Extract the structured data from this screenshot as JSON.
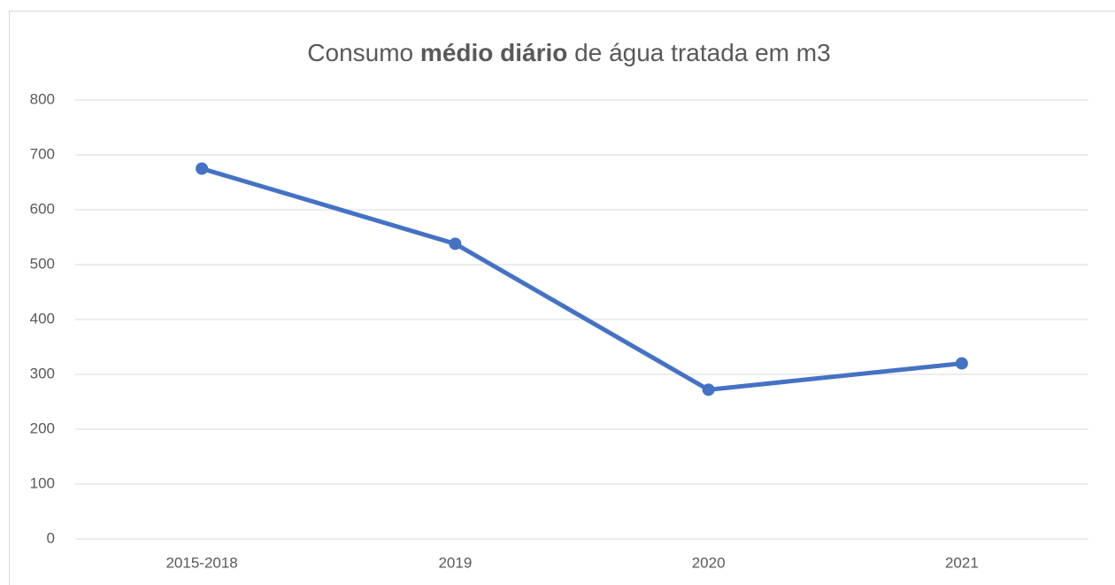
{
  "chart_data": {
    "type": "line",
    "title": [
      {
        "text": "Consumo "
      },
      {
        "text": "médio diário",
        "bold": true
      },
      {
        "text": " de água tratada em m3"
      }
    ],
    "categories": [
      "2015-2018",
      "2019",
      "2020",
      "2021"
    ],
    "series": [
      {
        "color": "#4472c4",
        "values": [
          675,
          538,
          272,
          320
        ]
      }
    ],
    "ylim": [
      0,
      800
    ],
    "yticks": [
      0,
      100,
      200,
      300,
      400,
      500,
      600,
      700,
      800
    ],
    "grid": true
  }
}
